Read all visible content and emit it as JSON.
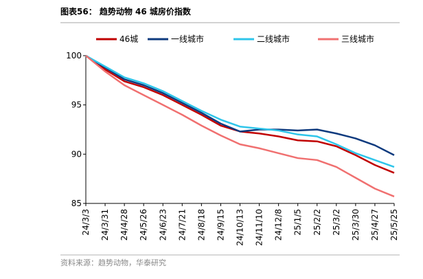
{
  "chart_data": {
    "type": "line",
    "title": "图表56： 趋势动物 46 城房价指数",
    "source": "资料来源：趋势动物，华泰研究",
    "categories": [
      "24/3/3",
      "24/3/31",
      "24/4/28",
      "24/5/26",
      "24/6/23",
      "24/7/21",
      "24/8/18",
      "24/9/15",
      "24/10/13",
      "24/11/10",
      "24/12/8",
      "25/1/5",
      "25/2/2",
      "25/3/2",
      "25/3/30",
      "25/4/27",
      "25/5/25"
    ],
    "series": [
      {
        "name": "46城",
        "color": "#c00000",
        "values": [
          100,
          98.6,
          97.4,
          96.8,
          96.0,
          95.0,
          94.0,
          92.9,
          92.3,
          92.1,
          91.8,
          91.4,
          91.3,
          90.8,
          89.9,
          88.9,
          88.1
        ]
      },
      {
        "name": "一线城市",
        "color": "#0e3a7e",
        "values": [
          100,
          98.8,
          97.6,
          97.0,
          96.2,
          95.2,
          94.2,
          93.1,
          92.3,
          92.5,
          92.5,
          92.4,
          92.5,
          92.1,
          91.6,
          90.9,
          89.9
        ]
      },
      {
        "name": "二线城市",
        "color": "#2ec5ea",
        "values": [
          100,
          98.9,
          97.8,
          97.2,
          96.4,
          95.4,
          94.4,
          93.5,
          92.8,
          92.6,
          92.4,
          92.0,
          91.8,
          91.0,
          90.1,
          89.4,
          88.7
        ]
      },
      {
        "name": "三线城市",
        "color": "#f07070",
        "values": [
          100,
          98.4,
          97.0,
          96.0,
          95.0,
          94.0,
          92.9,
          91.9,
          91.0,
          90.6,
          90.1,
          89.6,
          89.4,
          88.7,
          87.6,
          86.5,
          85.7
        ]
      }
    ],
    "ylim": [
      85,
      100
    ],
    "yticks": [
      85,
      90,
      95,
      100
    ]
  }
}
